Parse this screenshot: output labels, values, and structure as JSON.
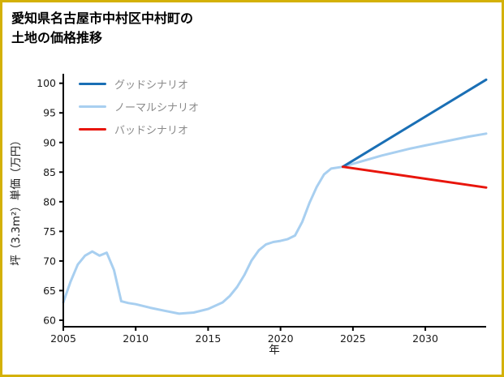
{
  "frame": {
    "border_color": "#D4B106",
    "background": "#ffffff"
  },
  "title": "愛知県名古屋市中村区中村町の\n土地の価格推移",
  "chart_data": {
    "type": "line",
    "title": "愛知県名古屋市中村区中村町の土地の価格推移",
    "xlabel": "年",
    "ylabel": "坪（3.3m²）単価（万円）",
    "xlim": [
      2005,
      2034.2
    ],
    "ylim": [
      58.9,
      101.6
    ],
    "x_ticks": [
      2005,
      2010,
      2015,
      2020,
      2025,
      2030
    ],
    "y_ticks": [
      60,
      65,
      70,
      75,
      80,
      85,
      90,
      95,
      100
    ],
    "grid": false,
    "legend_position": "top-left",
    "axis_color": "#000000",
    "series": [
      {
        "name": "グッドシナリオ",
        "color": "#1A6FB5",
        "x": [
          2024.3,
          2034.2
        ],
        "y": [
          85.9,
          100.6
        ]
      },
      {
        "name": "ノーマルシナリオ",
        "color": "#A8CFF0",
        "x": [
          2005,
          2005.5,
          2006,
          2006.5,
          2007,
          2007.5,
          2008,
          2008.5,
          2009,
          2009.5,
          2010,
          2011,
          2012,
          2013,
          2014,
          2015,
          2016,
          2016.5,
          2017,
          2017.5,
          2018,
          2018.5,
          2019,
          2019.5,
          2020,
          2020.5,
          2021,
          2021.5,
          2022,
          2022.5,
          2023,
          2023.5,
          2024.3,
          2025,
          2026,
          2027,
          2028,
          2029,
          2030,
          2031,
          2032,
          2033,
          2034.2
        ],
        "y": [
          63.0,
          66.5,
          69.4,
          70.9,
          71.6,
          70.9,
          71.4,
          68.5,
          63.2,
          62.9,
          62.7,
          62.1,
          61.6,
          61.1,
          61.3,
          61.9,
          63.0,
          64.1,
          65.6,
          67.6,
          70.1,
          71.8,
          72.8,
          73.2,
          73.4,
          73.7,
          74.3,
          76.6,
          79.8,
          82.5,
          84.6,
          85.6,
          85.9,
          86.4,
          87.1,
          87.8,
          88.4,
          89.0,
          89.5,
          90.0,
          90.5,
          91.0,
          91.5
        ]
      },
      {
        "name": "バッドシナリオ",
        "color": "#E8150C",
        "x": [
          2024.3,
          2034.2
        ],
        "y": [
          85.9,
          82.4
        ]
      }
    ]
  }
}
